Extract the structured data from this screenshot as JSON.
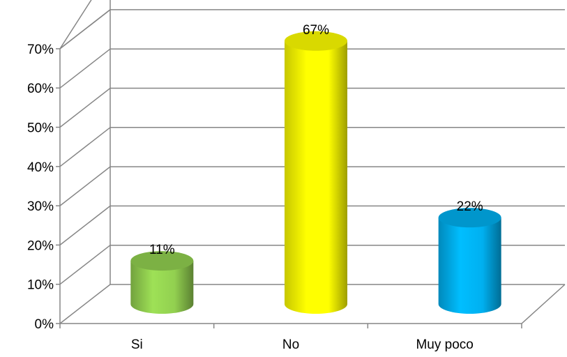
{
  "chart_data": {
    "type": "bar",
    "style": "3d-cylinder",
    "categories": [
      "Si",
      "No",
      "Muy poco"
    ],
    "values": [
      11,
      67,
      22
    ],
    "data_labels": [
      "11%",
      "67%",
      "22%"
    ],
    "colors": [
      "#92D050",
      "#FFFF00",
      "#00B0F0"
    ],
    "y_ticks": [
      "0%",
      "10%",
      "20%",
      "30%",
      "40%",
      "50%",
      "60%",
      "70%"
    ],
    "ylim": [
      0,
      70
    ],
    "grid": true,
    "legend": "none",
    "title": "",
    "xlabel": "",
    "ylabel": ""
  }
}
